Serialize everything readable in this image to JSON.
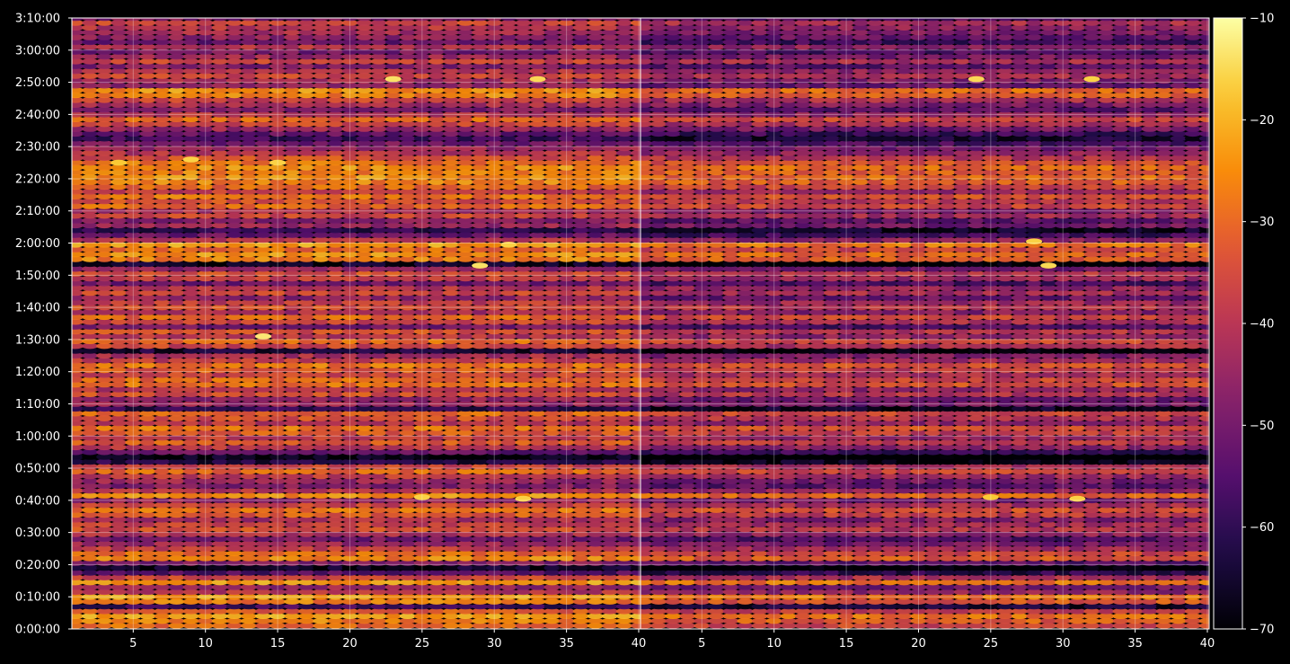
{
  "chart_data": {
    "type": "heatmap",
    "title": "",
    "xlabel": "",
    "ylabel": "",
    "background": "#000000",
    "colormap": "inferno",
    "grid": true,
    "panels": [
      {
        "x_range": [
          1,
          40
        ],
        "x_ticks": [
          5,
          10,
          15,
          20,
          25,
          30,
          35,
          40
        ]
      },
      {
        "x_range": [
          1,
          40
        ],
        "x_ticks": [
          5,
          10,
          15,
          20,
          25,
          30,
          35,
          40
        ]
      }
    ],
    "y_range_seconds": [
      0,
      11400
    ],
    "y_ticks": [
      {
        "value": 0,
        "label": "0:00:00"
      },
      {
        "value": 600,
        "label": "0:10:00"
      },
      {
        "value": 1200,
        "label": "0:20:00"
      },
      {
        "value": 1800,
        "label": "0:30:00"
      },
      {
        "value": 2400,
        "label": "0:40:00"
      },
      {
        "value": 3000,
        "label": "0:50:00"
      },
      {
        "value": 3600,
        "label": "1:00:00"
      },
      {
        "value": 4200,
        "label": "1:10:00"
      },
      {
        "value": 4800,
        "label": "1:20:00"
      },
      {
        "value": 5400,
        "label": "1:30:00"
      },
      {
        "value": 6000,
        "label": "1:40:00"
      },
      {
        "value": 6600,
        "label": "1:50:00"
      },
      {
        "value": 7200,
        "label": "2:00:00"
      },
      {
        "value": 7800,
        "label": "2:10:00"
      },
      {
        "value": 8400,
        "label": "2:20:00"
      },
      {
        "value": 9000,
        "label": "2:30:00"
      },
      {
        "value": 9600,
        "label": "2:40:00"
      },
      {
        "value": 10200,
        "label": "2:50:00"
      },
      {
        "value": 10800,
        "label": "3:00:00"
      },
      {
        "value": 11400,
        "label": "3:10:00"
      }
    ],
    "colorbar": {
      "range": [
        -70,
        -10
      ],
      "ticks": [
        {
          "value": -10,
          "label": "−10"
        },
        {
          "value": -20,
          "label": "−20"
        },
        {
          "value": -30,
          "label": "−30"
        },
        {
          "value": -40,
          "label": "−40"
        },
        {
          "value": -50,
          "label": "−50"
        },
        {
          "value": -60,
          "label": "−60"
        },
        {
          "value": -70,
          "label": "−70"
        }
      ]
    },
    "row_levels": [
      {
        "t": 60,
        "v": -30
      },
      {
        "t": 150,
        "v": -26
      },
      {
        "t": 240,
        "v": -22
      },
      {
        "t": 330,
        "v": -32
      },
      {
        "t": 420,
        "v": -58
      },
      {
        "t": 510,
        "v": -27
      },
      {
        "t": 600,
        "v": -22
      },
      {
        "t": 690,
        "v": -40
      },
      {
        "t": 780,
        "v": -45
      },
      {
        "t": 870,
        "v": -22
      },
      {
        "t": 960,
        "v": -36
      },
      {
        "t": 1050,
        "v": -55
      },
      {
        "t": 1140,
        "v": -66
      },
      {
        "t": 1230,
        "v": -48
      },
      {
        "t": 1320,
        "v": -26
      },
      {
        "t": 1410,
        "v": -30
      },
      {
        "t": 1500,
        "v": -38
      },
      {
        "t": 1590,
        "v": -44
      },
      {
        "t": 1680,
        "v": -50
      },
      {
        "t": 1770,
        "v": -40
      },
      {
        "t": 1860,
        "v": -34
      },
      {
        "t": 1950,
        "v": -37
      },
      {
        "t": 2040,
        "v": -42
      },
      {
        "t": 2130,
        "v": -32
      },
      {
        "t": 2220,
        "v": -28
      },
      {
        "t": 2310,
        "v": -36
      },
      {
        "t": 2400,
        "v": -45
      },
      {
        "t": 2490,
        "v": -24
      },
      {
        "t": 2580,
        "v": -40
      },
      {
        "t": 2670,
        "v": -48
      },
      {
        "t": 2760,
        "v": -44
      },
      {
        "t": 2850,
        "v": -38
      },
      {
        "t": 2940,
        "v": -30
      },
      {
        "t": 3030,
        "v": -36
      },
      {
        "t": 3120,
        "v": -62
      },
      {
        "t": 3210,
        "v": -68
      },
      {
        "t": 3300,
        "v": -52
      },
      {
        "t": 3390,
        "v": -40
      },
      {
        "t": 3480,
        "v": -32
      },
      {
        "t": 3570,
        "v": -38
      },
      {
        "t": 3660,
        "v": -32
      },
      {
        "t": 3750,
        "v": -28
      },
      {
        "t": 3840,
        "v": -40
      },
      {
        "t": 3930,
        "v": -34
      },
      {
        "t": 4020,
        "v": -30
      },
      {
        "t": 4110,
        "v": -60
      },
      {
        "t": 4200,
        "v": -44
      },
      {
        "t": 4290,
        "v": -46
      },
      {
        "t": 4380,
        "v": -34
      },
      {
        "t": 4470,
        "v": -40
      },
      {
        "t": 4560,
        "v": -28
      },
      {
        "t": 4650,
        "v": -30
      },
      {
        "t": 4740,
        "v": -36
      },
      {
        "t": 4830,
        "v": -32
      },
      {
        "t": 4920,
        "v": -28
      },
      {
        "t": 5010,
        "v": -38
      },
      {
        "t": 5100,
        "v": -42
      },
      {
        "t": 5190,
        "v": -64
      },
      {
        "t": 5280,
        "v": -36
      },
      {
        "t": 5370,
        "v": -30
      },
      {
        "t": 5460,
        "v": -40
      },
      {
        "t": 5550,
        "v": -34
      },
      {
        "t": 5640,
        "v": -50
      },
      {
        "t": 5730,
        "v": -36
      },
      {
        "t": 5820,
        "v": -30
      },
      {
        "t": 5910,
        "v": -42
      },
      {
        "t": 6000,
        "v": -34
      },
      {
        "t": 6090,
        "v": -38
      },
      {
        "t": 6180,
        "v": -46
      },
      {
        "t": 6270,
        "v": -36
      },
      {
        "t": 6360,
        "v": -40
      },
      {
        "t": 6450,
        "v": -50
      },
      {
        "t": 6540,
        "v": -38
      },
      {
        "t": 6630,
        "v": -34
      },
      {
        "t": 6720,
        "v": -46
      },
      {
        "t": 6810,
        "v": -66
      },
      {
        "t": 6900,
        "v": -26
      },
      {
        "t": 6990,
        "v": -24
      },
      {
        "t": 7080,
        "v": -30
      },
      {
        "t": 7170,
        "v": -22
      },
      {
        "t": 7260,
        "v": -40
      },
      {
        "t": 7350,
        "v": -52
      },
      {
        "t": 7440,
        "v": -60
      },
      {
        "t": 7530,
        "v": -44
      },
      {
        "t": 7620,
        "v": -48
      },
      {
        "t": 7710,
        "v": -36
      },
      {
        "t": 7800,
        "v": -42
      },
      {
        "t": 7890,
        "v": -30
      },
      {
        "t": 7980,
        "v": -34
      },
      {
        "t": 8070,
        "v": -28
      },
      {
        "t": 8160,
        "v": -38
      },
      {
        "t": 8250,
        "v": -30
      },
      {
        "t": 8340,
        "v": -26
      },
      {
        "t": 8430,
        "v": -24
      },
      {
        "t": 8520,
        "v": -26
      },
      {
        "t": 8610,
        "v": -24
      },
      {
        "t": 8700,
        "v": -28
      },
      {
        "t": 8790,
        "v": -34
      },
      {
        "t": 8880,
        "v": -40
      },
      {
        "t": 8970,
        "v": -44
      },
      {
        "t": 9060,
        "v": -50
      },
      {
        "t": 9150,
        "v": -58
      },
      {
        "t": 9240,
        "v": -52
      },
      {
        "t": 9330,
        "v": -44
      },
      {
        "t": 9420,
        "v": -36
      },
      {
        "t": 9510,
        "v": -30
      },
      {
        "t": 9600,
        "v": -40
      },
      {
        "t": 9690,
        "v": -48
      },
      {
        "t": 9780,
        "v": -42
      },
      {
        "t": 9870,
        "v": -36
      },
      {
        "t": 9960,
        "v": -26
      },
      {
        "t": 10050,
        "v": -24
      },
      {
        "t": 10140,
        "v": -46
      },
      {
        "t": 10230,
        "v": -42
      },
      {
        "t": 10320,
        "v": -36
      },
      {
        "t": 10410,
        "v": -40
      },
      {
        "t": 10500,
        "v": -48
      },
      {
        "t": 10590,
        "v": -36
      },
      {
        "t": 10680,
        "v": -44
      },
      {
        "t": 10770,
        "v": -50
      },
      {
        "t": 10860,
        "v": -40
      },
      {
        "t": 10950,
        "v": -52
      },
      {
        "t": 11040,
        "v": -46
      },
      {
        "t": 11130,
        "v": -42
      },
      {
        "t": 11220,
        "v": -40
      },
      {
        "t": 11310,
        "v": -36
      },
      {
        "t": 11400,
        "v": -48
      }
    ],
    "panel_offset": [
      0,
      -6
    ],
    "hotspots": [
      {
        "panel": 0,
        "x": 14,
        "t": 5460,
        "v": -13
      },
      {
        "panel": 0,
        "x": 29,
        "t": 6780,
        "v": -14
      },
      {
        "panel": 0,
        "x": 23,
        "t": 10260,
        "v": -14
      },
      {
        "panel": 0,
        "x": 33,
        "t": 10260,
        "v": -15
      },
      {
        "panel": 0,
        "x": 9,
        "t": 8760,
        "v": -16
      },
      {
        "panel": 0,
        "x": 15,
        "t": 8700,
        "v": -16
      },
      {
        "panel": 0,
        "x": 4,
        "t": 8700,
        "v": -17
      },
      {
        "panel": 0,
        "x": 25,
        "t": 2460,
        "v": -16
      },
      {
        "panel": 0,
        "x": 32,
        "t": 2430,
        "v": -16
      },
      {
        "panel": 0,
        "x": 31,
        "t": 7170,
        "v": -16
      },
      {
        "panel": 1,
        "x": 25,
        "t": 2460,
        "v": -17
      },
      {
        "panel": 1,
        "x": 31,
        "t": 2430,
        "v": -16
      },
      {
        "panel": 1,
        "x": 29,
        "t": 6780,
        "v": -15
      },
      {
        "panel": 1,
        "x": 32,
        "t": 10260,
        "v": -16
      },
      {
        "panel": 1,
        "x": 24,
        "t": 10260,
        "v": -15
      },
      {
        "panel": 1,
        "x": 28,
        "t": 7230,
        "v": -16
      }
    ]
  }
}
